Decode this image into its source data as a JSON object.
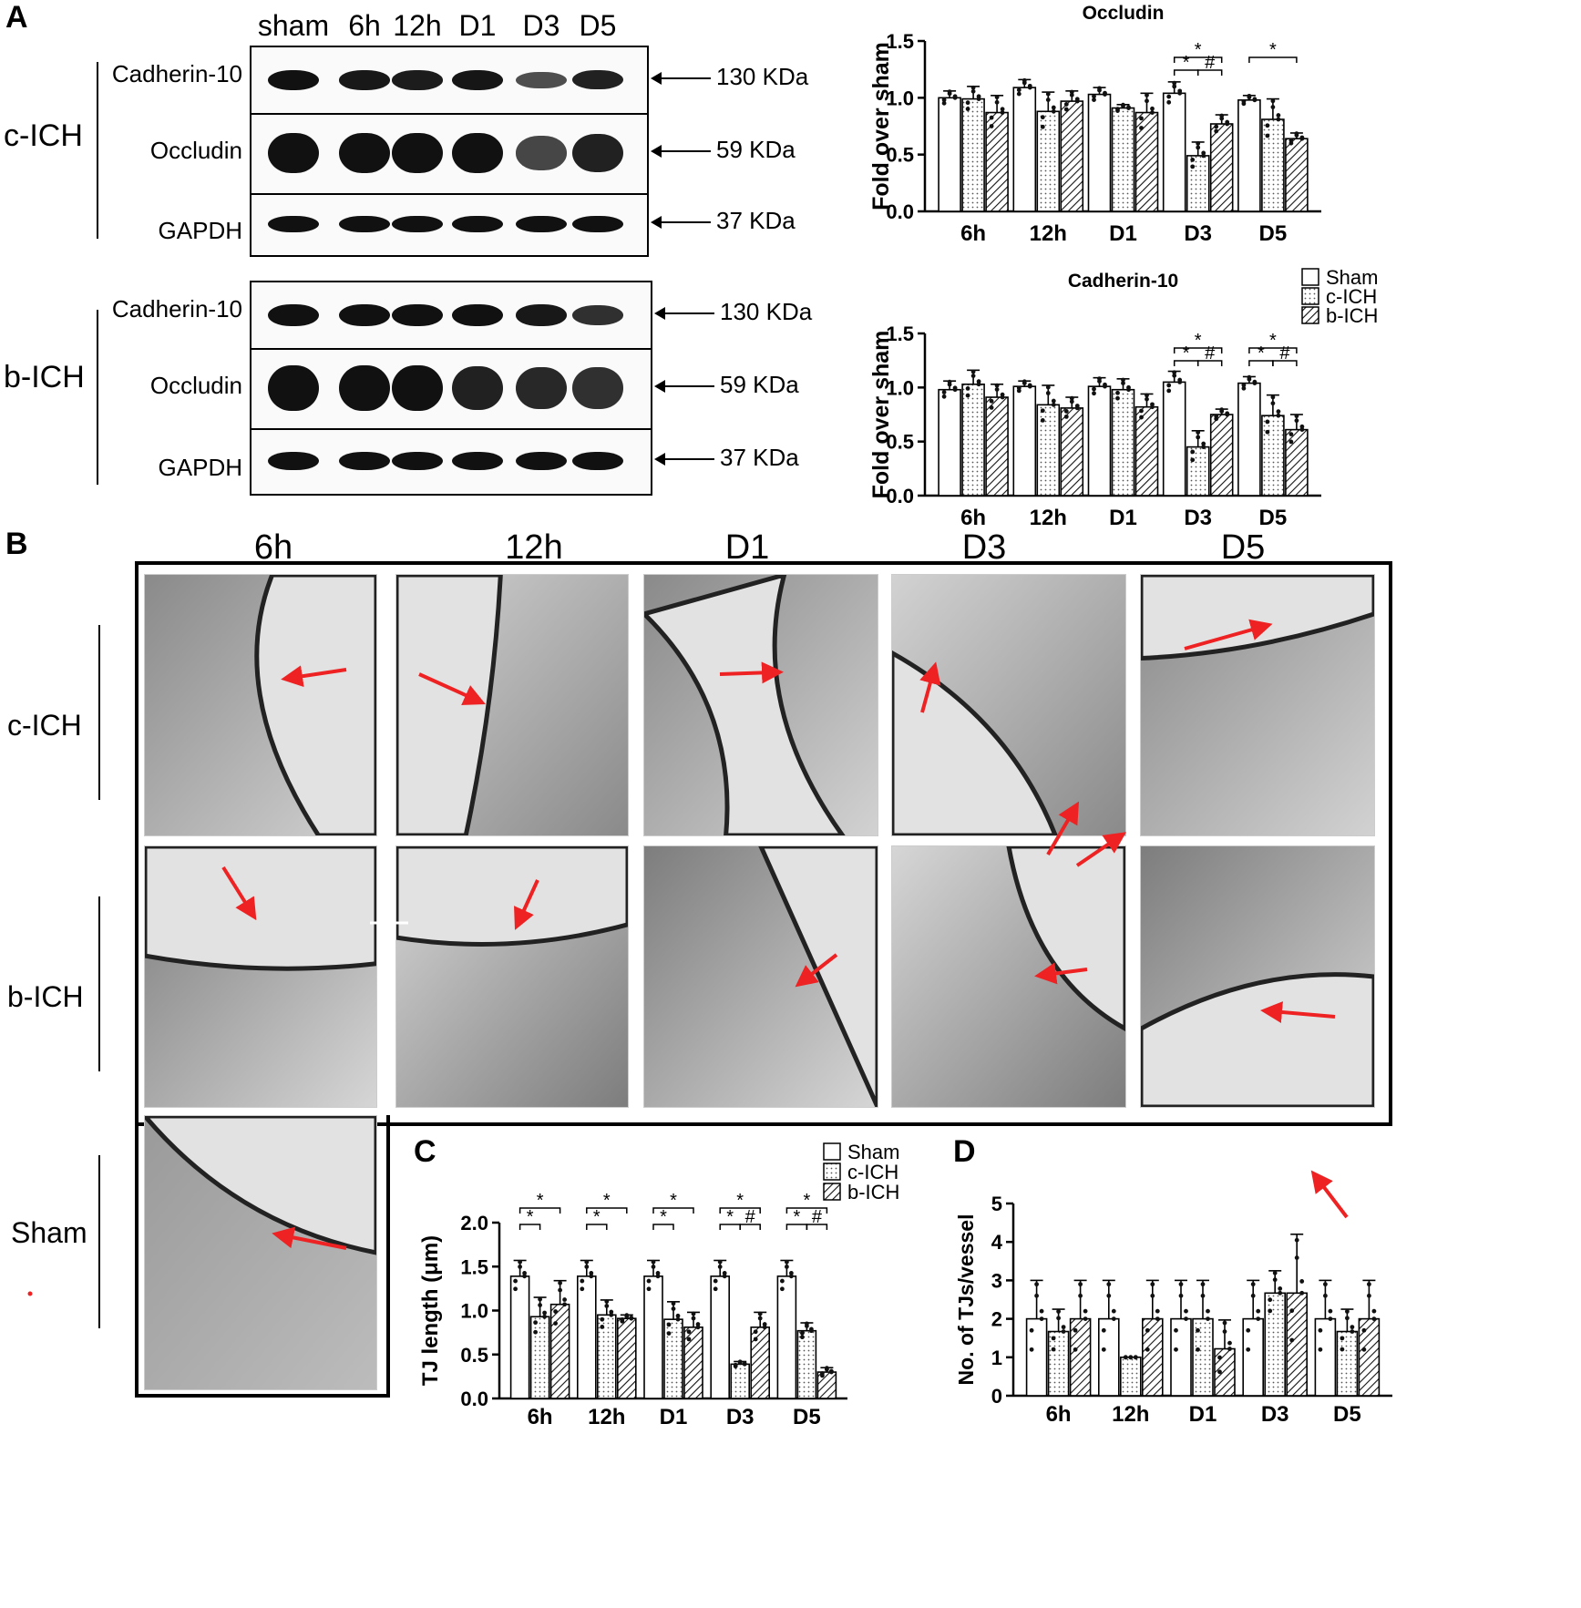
{
  "panels": {
    "a": "A",
    "b": "B",
    "c": "C",
    "d": "D"
  },
  "blot": {
    "lanes": [
      "sham",
      "6h",
      "12h",
      "D1",
      "D3",
      "D5"
    ],
    "groups": [
      {
        "label": "c-ICH",
        "rows": [
          {
            "label": "Cadherin-10",
            "mw": "130 KDa",
            "intensity": [
              1,
              0.95,
              0.93,
              0.97,
              0.6,
              0.9
            ]
          },
          {
            "label": "Occludin",
            "mw": "59 KDa",
            "intensity": [
              1,
              1,
              1,
              1,
              0.65,
              0.9
            ]
          },
          {
            "label": "GAPDH",
            "mw": "37 KDa",
            "intensity": [
              1,
              1,
              1,
              1,
              1,
              1
            ]
          }
        ]
      },
      {
        "label": "b-ICH",
        "rows": [
          {
            "label": "Cadherin-10",
            "mw": "130 KDa",
            "intensity": [
              1,
              1,
              1,
              1,
              0.95,
              0.8
            ]
          },
          {
            "label": "Occludin",
            "mw": "59 KDa",
            "intensity": [
              1,
              1,
              1,
              0.9,
              0.85,
              0.8
            ]
          },
          {
            "label": "GAPDH",
            "mw": "37 KDa",
            "intensity": [
              1,
              1,
              1,
              1,
              1,
              1
            ]
          }
        ]
      }
    ]
  },
  "legend_top": [
    "Sham",
    "c-ICH",
    "b-ICH"
  ],
  "legend_c": [
    "Sham",
    "c-ICH",
    "b-ICH"
  ],
  "em": {
    "columns": [
      "6h",
      "12h",
      "D1",
      "D3",
      "D5"
    ],
    "rows": [
      "c-ICH",
      "b-ICH",
      "Sham"
    ]
  },
  "colors": {
    "arrow": "#ee2222",
    "sham_fill": "#ffffff",
    "cich_fill": "#dddddd",
    "bich_fill": "#cccccc"
  },
  "chart_data": [
    {
      "type": "bar",
      "title": "Occludin",
      "ylabel": "Fold over sham",
      "ylim": [
        0,
        1.5
      ],
      "yticks": [
        "0.0",
        "0.5",
        "1.0",
        "1.5"
      ],
      "categories": [
        "6h",
        "12h",
        "D1",
        "D3",
        "D5"
      ],
      "series": [
        {
          "name": "Sham",
          "values": [
            1.0,
            1.09,
            1.03,
            1.04,
            0.98
          ],
          "err": [
            0.06,
            0.07,
            0.06,
            0.1,
            0.04
          ]
        },
        {
          "name": "c-ICH",
          "values": [
            0.99,
            0.88,
            0.91,
            0.49,
            0.81
          ],
          "err": [
            0.11,
            0.17,
            0.03,
            0.12,
            0.18
          ]
        },
        {
          "name": "b-ICH",
          "values": [
            0.87,
            0.97,
            0.87,
            0.77,
            0.64
          ],
          "err": [
            0.15,
            0.09,
            0.17,
            0.08,
            0.05
          ]
        }
      ],
      "annotations": [
        {
          "cat": 3,
          "from": 0,
          "to": 1,
          "level": 1,
          "text": "*"
        },
        {
          "cat": 3,
          "from": 1,
          "to": 2,
          "level": 1,
          "text": "#"
        },
        {
          "cat": 3,
          "from": 0,
          "to": 2,
          "level": 2,
          "text": "*"
        },
        {
          "cat": 4,
          "from": 0,
          "to": 2,
          "level": 2,
          "text": "*"
        }
      ]
    },
    {
      "type": "bar",
      "title": "Cadherin-10",
      "ylabel": "Fold over sham",
      "ylim": [
        0,
        1.5
      ],
      "yticks": [
        "0.0",
        "0.5",
        "1.0",
        "1.5"
      ],
      "categories": [
        "6h",
        "12h",
        "D1",
        "D3",
        "D5"
      ],
      "series": [
        {
          "name": "Sham",
          "values": [
            0.98,
            1.01,
            1.01,
            1.05,
            1.04
          ],
          "err": [
            0.08,
            0.05,
            0.08,
            0.1,
            0.06
          ]
        },
        {
          "name": "c-ICH",
          "values": [
            1.03,
            0.84,
            0.98,
            0.45,
            0.74
          ],
          "err": [
            0.13,
            0.18,
            0.1,
            0.15,
            0.19
          ]
        },
        {
          "name": "b-ICH",
          "values": [
            0.91,
            0.81,
            0.82,
            0.75,
            0.61
          ],
          "err": [
            0.12,
            0.1,
            0.12,
            0.05,
            0.14
          ]
        }
      ],
      "annotations": [
        {
          "cat": 3,
          "from": 0,
          "to": 1,
          "level": 1,
          "text": "*"
        },
        {
          "cat": 3,
          "from": 1,
          "to": 2,
          "level": 1,
          "text": "#"
        },
        {
          "cat": 3,
          "from": 0,
          "to": 2,
          "level": 2,
          "text": "*"
        },
        {
          "cat": 4,
          "from": 0,
          "to": 1,
          "level": 1,
          "text": "*"
        },
        {
          "cat": 4,
          "from": 1,
          "to": 2,
          "level": 1,
          "text": "#"
        },
        {
          "cat": 4,
          "from": 0,
          "to": 2,
          "level": 2,
          "text": "*"
        }
      ]
    },
    {
      "type": "bar",
      "title": "",
      "ylabel": "TJ length (μm)",
      "ylim": [
        0,
        2.0
      ],
      "yticks": [
        "0.0",
        "0.5",
        "1.0",
        "1.5",
        "2.0"
      ],
      "categories": [
        "6h",
        "12h",
        "D1",
        "D3",
        "D5"
      ],
      "series": [
        {
          "name": "Sham",
          "values": [
            1.39,
            1.39,
            1.39,
            1.39,
            1.39
          ],
          "err": [
            0.18,
            0.18,
            0.18,
            0.18,
            0.18
          ]
        },
        {
          "name": "c-ICH",
          "values": [
            0.93,
            0.95,
            0.9,
            0.39,
            0.77
          ],
          "err": [
            0.22,
            0.17,
            0.2,
            0.03,
            0.09
          ]
        },
        {
          "name": "b-ICH",
          "values": [
            1.07,
            0.91,
            0.81,
            0.81,
            0.3
          ],
          "err": [
            0.27,
            0.04,
            0.17,
            0.17,
            0.05
          ]
        }
      ],
      "annotations": [
        {
          "cat": 0,
          "from": 0,
          "to": 1,
          "level": 1,
          "text": "*"
        },
        {
          "cat": 0,
          "from": 0,
          "to": 2,
          "level": 2,
          "text": "*"
        },
        {
          "cat": 1,
          "from": 0,
          "to": 1,
          "level": 1,
          "text": "*"
        },
        {
          "cat": 1,
          "from": 0,
          "to": 2,
          "level": 2,
          "text": "*"
        },
        {
          "cat": 2,
          "from": 0,
          "to": 1,
          "level": 1,
          "text": "*"
        },
        {
          "cat": 2,
          "from": 0,
          "to": 2,
          "level": 2,
          "text": "*"
        },
        {
          "cat": 3,
          "from": 0,
          "to": 1,
          "level": 1,
          "text": "*"
        },
        {
          "cat": 3,
          "from": 1,
          "to": 2,
          "level": 1,
          "text": "#"
        },
        {
          "cat": 3,
          "from": 0,
          "to": 2,
          "level": 2,
          "text": "*"
        },
        {
          "cat": 4,
          "from": 0,
          "to": 1,
          "level": 1,
          "text": "*"
        },
        {
          "cat": 4,
          "from": 1,
          "to": 2,
          "level": 1,
          "text": "#"
        },
        {
          "cat": 4,
          "from": 0,
          "to": 2,
          "level": 2,
          "text": "*"
        }
      ]
    },
    {
      "type": "bar",
      "title": "",
      "ylabel": "No. of TJs/vessel",
      "ylim": [
        0,
        5
      ],
      "yticks": [
        "0",
        "1",
        "2",
        "3",
        "4",
        "5"
      ],
      "categories": [
        "6h",
        "12h",
        "D1",
        "D3",
        "D5"
      ],
      "series": [
        {
          "name": "Sham",
          "values": [
            2.0,
            2.0,
            2.0,
            2.0,
            2.0
          ],
          "err": [
            1.0,
            1.0,
            1.0,
            1.0,
            1.0
          ]
        },
        {
          "name": "c-ICH",
          "values": [
            1.67,
            1.0,
            2.0,
            2.67,
            1.67
          ],
          "err": [
            0.58,
            0.0,
            1.0,
            0.58,
            0.58
          ]
        },
        {
          "name": "b-ICH",
          "values": [
            2.0,
            2.0,
            1.22,
            2.67,
            2.0
          ],
          "err": [
            1.0,
            1.0,
            0.75,
            1.53,
            1.0
          ]
        }
      ],
      "annotations": []
    }
  ]
}
